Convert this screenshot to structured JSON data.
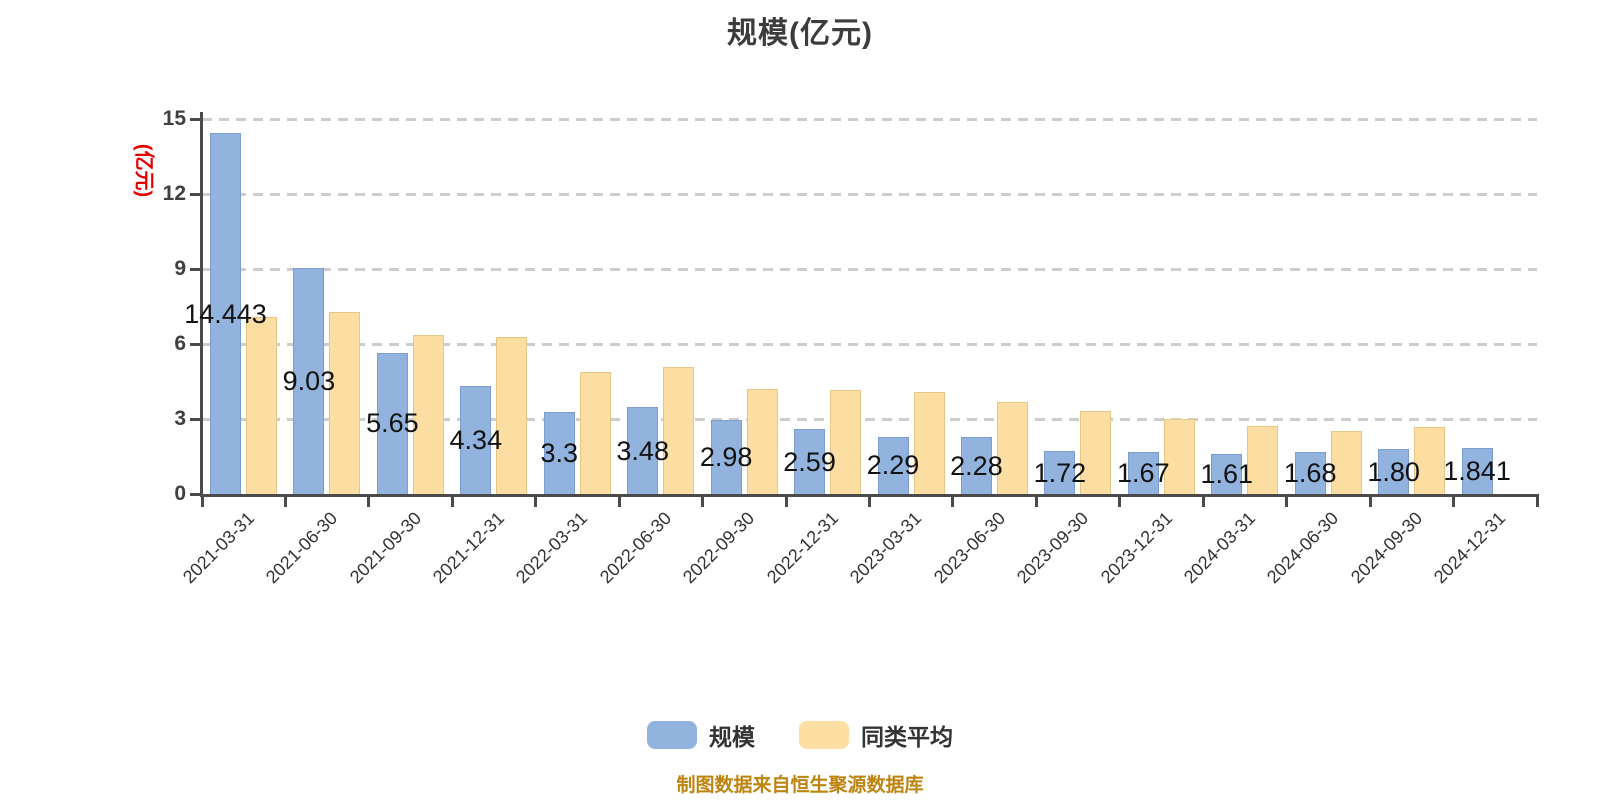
{
  "title": "规模(亿元)",
  "y_axis_name": "(亿元)",
  "legend": {
    "scale_label": "规模",
    "peer_label": "同类平均"
  },
  "footer": "制图数据来自恒生聚源数据库",
  "colors": {
    "scale_fill": "#92b3de",
    "scale_border": "#7b9cce",
    "peer_fill": "#fcdea3",
    "peer_border": "#e6c685",
    "axis": "#4a4a4a",
    "grid": "#cdcdcd",
    "y_unit_text": "#e60000",
    "footer_text": "#bd8410"
  },
  "chart_data": {
    "type": "bar",
    "title": "规模(亿元)",
    "ylabel": "(亿元)",
    "xlabel": "",
    "ylim": [
      0,
      15
    ],
    "yticks": [
      0,
      3,
      6,
      9,
      12,
      15
    ],
    "grid": "horizontal dashed",
    "legend_position": "bottom",
    "categories": [
      "2021-03-31",
      "2021-06-30",
      "2021-09-30",
      "2021-12-31",
      "2022-03-31",
      "2022-06-30",
      "2022-09-30",
      "2022-12-31",
      "2023-03-31",
      "2023-06-30",
      "2023-09-30",
      "2023-12-31",
      "2024-03-31",
      "2024-06-30",
      "2024-09-30",
      "2024-12-31"
    ],
    "series": [
      {
        "name": "规模",
        "color": "#92b3de",
        "values": [
          14.44,
          9.03,
          5.65,
          4.34,
          3.3,
          3.48,
          2.98,
          2.59,
          2.29,
          2.28,
          1.72,
          1.67,
          1.61,
          1.68,
          1.8,
          1.84
        ]
      },
      {
        "name": "同类平均",
        "color": "#fcdea3",
        "values": [
          7.08,
          7.28,
          6.36,
          6.28,
          4.88,
          5.08,
          4.22,
          4.16,
          4.07,
          3.68,
          3.32,
          3.0,
          2.72,
          2.52,
          2.69,
          null
        ]
      }
    ],
    "bar_labels": [
      "14.443",
      "9.03",
      "5.65",
      "4.34",
      "3.3",
      "3.48",
      "2.98",
      "2.59",
      "2.29",
      "2.28",
      "1.72",
      "1.67",
      "1.61",
      "1.68",
      "1.80",
      "1.841"
    ]
  }
}
